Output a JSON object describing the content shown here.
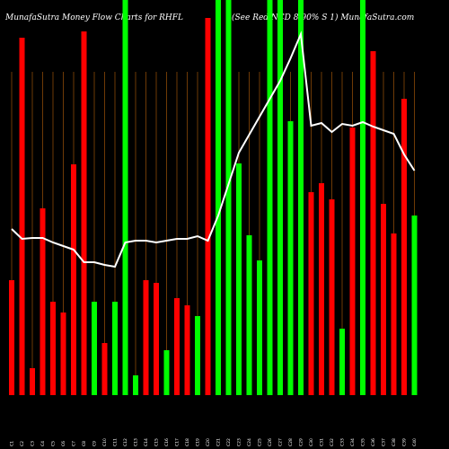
{
  "chart_data": {
    "type": "bar",
    "title": "MunafaSutra  Money Flow  Charts for RHFL",
    "subtitle": "(See Red NCD 8.90% S 1) MunafaSutra.com",
    "categories": [
      "C1",
      "C2",
      "C3",
      "C4",
      "C5",
      "C6",
      "C7",
      "C8",
      "C9",
      "C10",
      "C11",
      "C12",
      "C13",
      "C14",
      "C15",
      "C16",
      "C17",
      "C18",
      "C19",
      "C20",
      "C21",
      "C22",
      "C23",
      "C24",
      "C25",
      "C26",
      "C27",
      "C28",
      "C29",
      "C30",
      "C31",
      "C32",
      "C33",
      "C34",
      "C35",
      "C36",
      "C37",
      "C38",
      "C39",
      "C40"
    ],
    "ylim": [
      0,
      440
    ],
    "bars": {
      "values": [
        128,
        398,
        30,
        208,
        104,
        92,
        257,
        405,
        104,
        58,
        104,
        440,
        22,
        128,
        125,
        50,
        108,
        100,
        88,
        420,
        440,
        440,
        258,
        178,
        150,
        440,
        440,
        305,
        440,
        226,
        236,
        218,
        74,
        298,
        440,
        383,
        213,
        180,
        330,
        200
      ],
      "colors": [
        "#ff0000",
        "#ff0000",
        "#ff0000",
        "#ff0000",
        "#ff0000",
        "#ff0000",
        "#ff0000",
        "#ff0000",
        "#00ff00",
        "#ff0000",
        "#00ff00",
        "#00ff00",
        "#00ff00",
        "#ff0000",
        "#ff0000",
        "#00ff00",
        "#ff0000",
        "#ff0000",
        "#00ff00",
        "#ff0000",
        "#00ff00",
        "#00ff00",
        "#00ff00",
        "#00ff00",
        "#00ff00",
        "#00ff00",
        "#00ff00",
        "#00ff00",
        "#00ff00",
        "#ff0000",
        "#ff0000",
        "#ff0000",
        "#00ff00",
        "#ff0000",
        "#00ff00",
        "#ff0000",
        "#ff0000",
        "#ff0000",
        "#ff0000",
        "#00ff00"
      ]
    },
    "line": {
      "color": "#ffffff",
      "values": [
        185,
        174,
        175,
        175,
        170,
        166,
        162,
        148,
        148,
        145,
        143,
        170,
        172,
        172,
        170,
        172,
        174,
        174,
        177,
        172,
        200,
        235,
        270,
        290,
        310,
        330,
        350,
        375,
        402,
        300,
        303,
        293,
        302,
        300,
        304,
        299,
        295,
        291,
        268,
        250
      ]
    }
  }
}
